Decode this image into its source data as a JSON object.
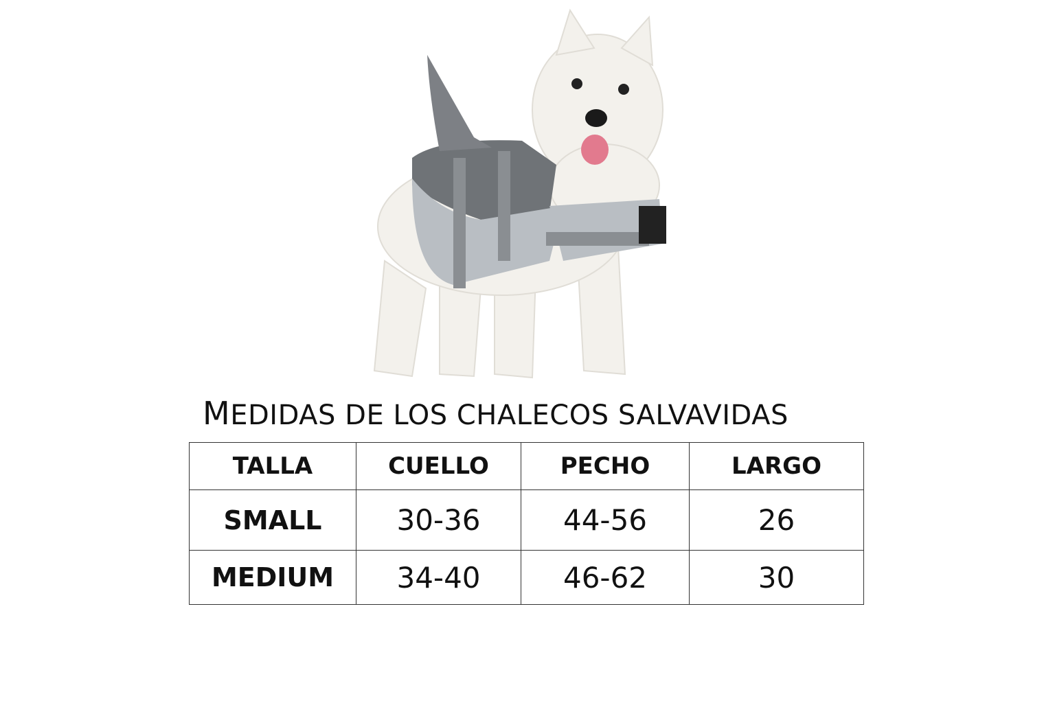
{
  "image": {
    "subject": "dog-shark-life-vest",
    "vest_color": "#7d8085",
    "vest_light_color": "#b9bec3"
  },
  "title": {
    "first": "M",
    "rest": "EDIDAS DE LOS CHALECOS SALVAVIDAS"
  },
  "table": {
    "headers": [
      "TALLA",
      "CUELLO",
      "PECHO",
      "LARGO"
    ],
    "rows": [
      [
        "SMALL",
        "30-36",
        "44-56",
        "26"
      ],
      [
        "MEDIUM",
        "34-40",
        "46-62",
        "30"
      ]
    ]
  }
}
